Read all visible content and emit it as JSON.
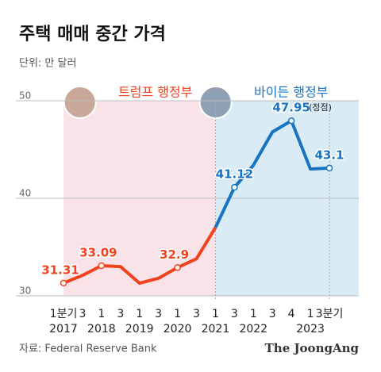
{
  "chart_data": {
    "type": "line",
    "title": "주택 매매 중간 가격",
    "subtitle": "단위: 만 달러",
    "source": "자료: Federal Reserve Bank",
    "brand": "The JoongAng",
    "categories": [
      "1분기",
      "3",
      "1",
      "3",
      "1",
      "3",
      "1",
      "3",
      "1",
      "3",
      "1",
      "3",
      "4",
      "1",
      "3분기"
    ],
    "years": [
      "2017",
      null,
      "2018",
      null,
      "2019",
      null,
      "2020",
      null,
      "2021",
      null,
      "2022",
      null,
      null,
      "2023",
      null
    ],
    "values": [
      31.31,
      32.1,
      33.09,
      33.0,
      31.3,
      31.8,
      32.9,
      33.8,
      37.0,
      41.12,
      43.4,
      46.8,
      47.95,
      43.0,
      43.1
    ],
    "labeled": [
      0,
      2,
      6,
      9,
      12,
      14
    ],
    "peak_note": "(정점)",
    "periods": [
      {
        "label": "트럼프 행정부",
        "start": 0,
        "end": 8,
        "color": "#f0421c",
        "background": "#fae3e8"
      },
      {
        "label": "바이든 행정부",
        "start": 8,
        "end": 14,
        "color": "#1a73c0",
        "background": "#d9ecf5"
      }
    ],
    "ylim": [
      30,
      50
    ],
    "yticks": [
      30,
      40,
      50
    ],
    "grid": true
  }
}
